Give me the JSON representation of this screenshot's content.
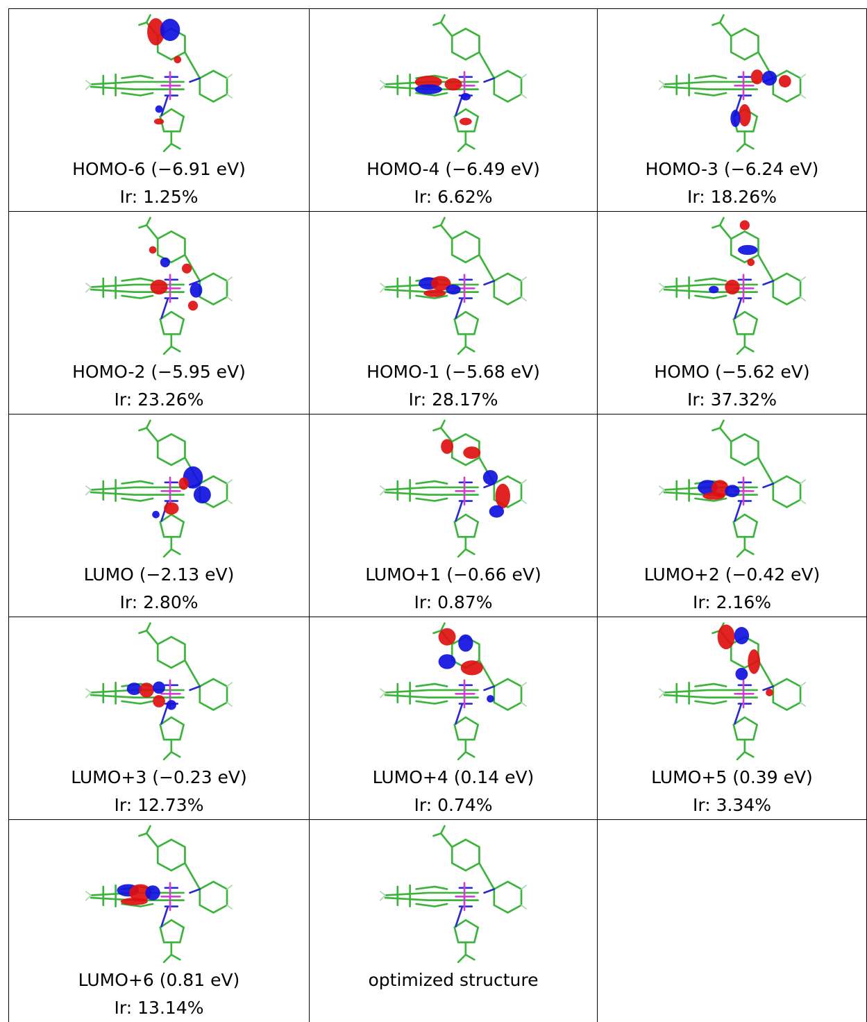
{
  "table": {
    "rows": [
      [
        {
          "label": "HOMO-6 (−6.91 eV)",
          "ir": "Ir: 1.25%"
        },
        {
          "label": "HOMO-4 (−6.49 eV)",
          "ir": "Ir: 6.62%"
        },
        {
          "label": "HOMO-3 (−6.24 eV)",
          "ir": "Ir: 18.26%"
        }
      ],
      [
        {
          "label": "HOMO-2 (−5.95 eV)",
          "ir": "Ir: 23.26%"
        },
        {
          "label": "HOMO-1 (−5.68 eV)",
          "ir": "Ir: 28.17%"
        },
        {
          "label": "HOMO (−5.62 eV)",
          "ir": "Ir: 37.32%"
        }
      ],
      [
        {
          "label": "LUMO (−2.13 eV)",
          "ir": "Ir: 2.80%"
        },
        {
          "label": "LUMO+1 (−0.66 eV)",
          "ir": "Ir: 0.87%"
        },
        {
          "label": "LUMO+2 (−0.42 eV)",
          "ir": "Ir: 2.16%"
        }
      ],
      [
        {
          "label": "LUMO+3 (−0.23 eV)",
          "ir": "Ir: 12.73%"
        },
        {
          "label": "LUMO+4 (0.14 eV)",
          "ir": "Ir: 0.74%"
        },
        {
          "label": "LUMO+5 (0.39 eV)",
          "ir": "Ir: 3.34%"
        }
      ],
      [
        {
          "label": "LUMO+6 (0.81 eV)",
          "ir": "Ir: 13.14%"
        },
        {
          "label": "optimized structure"
        }
      ]
    ]
  }
}
